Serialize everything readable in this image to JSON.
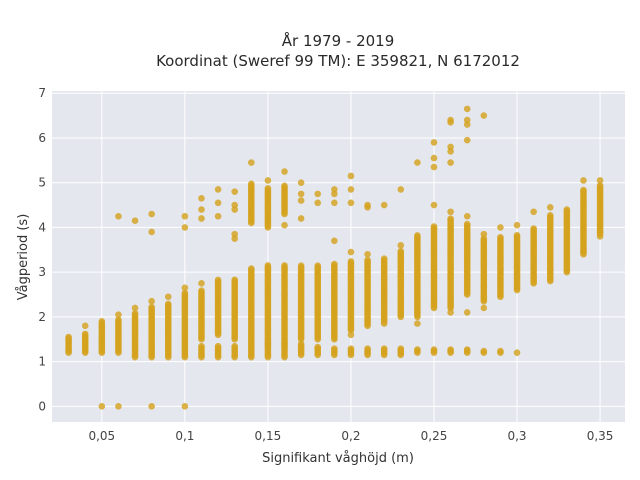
{
  "chart_data": {
    "type": "scatter",
    "title_line1": "År 1979 - 2019",
    "title_line2": "Koordinat (Sweref 99 TM): E 359821, N 6172012",
    "xlabel": "Signifikant våghöjd (m)",
    "ylabel": "Vågperiod (s)",
    "xlim": [
      0.02,
      0.365
    ],
    "ylim": [
      -0.35,
      7.05
    ],
    "x_ticks": [
      0.05,
      0.1,
      0.15,
      0.2,
      0.25,
      0.3,
      0.35
    ],
    "x_tick_labels": [
      "0,05",
      "0,1",
      "0,15",
      "0,2",
      "0,25",
      "0,3",
      "0,35"
    ],
    "y_ticks": [
      0,
      1,
      2,
      3,
      4,
      5,
      6,
      7
    ],
    "y_tick_labels": [
      "0",
      "1",
      "2",
      "3",
      "4",
      "5",
      "6",
      "7"
    ],
    "grid": true,
    "marker_color": "#d4a21f",
    "plot_bg": "#e5e7ef",
    "grid_color": "#ffffff",
    "columns": [
      {
        "x": 0.03,
        "main": [
          1.2,
          1.55
        ],
        "extra": []
      },
      {
        "x": 0.04,
        "main": [
          1.2,
          1.65
        ],
        "extra": [
          1.8
        ]
      },
      {
        "x": 0.05,
        "main": [
          1.2,
          1.9
        ],
        "extra": [
          0
        ]
      },
      {
        "x": 0.06,
        "main": [
          1.2,
          1.95
        ],
        "extra": [
          0,
          2.05,
          4.25
        ]
      },
      {
        "x": 0.07,
        "main": [
          1.1,
          2.1
        ],
        "extra": [
          2.2,
          4.15
        ]
      },
      {
        "x": 0.08,
        "main": [
          1.1,
          2.25
        ],
        "extra": [
          0,
          2.35,
          3.9,
          4.3
        ]
      },
      {
        "x": 0.09,
        "main": [
          1.1,
          2.3
        ],
        "extra": [
          2.45
        ]
      },
      {
        "x": 0.1,
        "main": [
          1.1,
          2.55
        ],
        "extra": [
          0,
          2.65,
          4.0,
          4.25
        ]
      },
      {
        "x": 0.11,
        "main": [
          1.5,
          2.6
        ],
        "cluster": [
          1.1,
          1.35
        ],
        "extra": [
          2.75,
          4.2,
          4.4,
          4.65
        ]
      },
      {
        "x": 0.12,
        "main": [
          1.6,
          2.85
        ],
        "cluster": [
          1.1,
          1.35
        ],
        "extra": [
          4.25,
          4.55,
          4.85
        ]
      },
      {
        "x": 0.13,
        "main": [
          1.5,
          2.85
        ],
        "cluster": [
          1.1,
          1.35
        ],
        "extra": [
          3.75,
          3.85,
          4.4,
          4.5,
          4.8
        ]
      },
      {
        "x": 0.14,
        "main": [
          1.4,
          3.1
        ],
        "cluster": [
          1.1,
          1.4
        ],
        "upper": [
          4.1,
          5.0
        ],
        "extra": [
          5.45
        ]
      },
      {
        "x": 0.15,
        "main": [
          1.4,
          3.15
        ],
        "cluster": [
          1.1,
          1.4
        ],
        "upper": [
          4.0,
          4.9
        ],
        "extra": [
          5.05
        ]
      },
      {
        "x": 0.16,
        "main": [
          1.4,
          3.15
        ],
        "cluster": [
          1.1,
          1.4
        ],
        "upper": [
          4.3,
          4.95
        ],
        "extra": [
          4.05,
          5.25
        ]
      },
      {
        "x": 0.17,
        "main": [
          1.5,
          3.15
        ],
        "cluster": [
          1.15,
          1.4
        ],
        "extra": [
          4.2,
          4.6,
          4.75,
          5.0
        ]
      },
      {
        "x": 0.18,
        "main": [
          1.5,
          3.15
        ],
        "cluster": [
          1.15,
          1.35
        ],
        "extra": [
          4.55,
          4.75
        ]
      },
      {
        "x": 0.19,
        "main": [
          1.5,
          3.2
        ],
        "cluster": [
          1.15,
          1.3
        ],
        "extra": [
          3.7,
          4.55,
          4.75,
          4.85
        ]
      },
      {
        "x": 0.2,
        "main": [
          1.7,
          3.25
        ],
        "cluster": [
          1.15,
          1.3
        ],
        "extra": [
          1.6,
          3.45,
          4.55,
          4.85,
          5.15
        ]
      },
      {
        "x": 0.21,
        "main": [
          1.8,
          3.3
        ],
        "cluster": [
          1.15,
          1.3
        ],
        "extra": [
          3.4,
          4.45,
          4.5
        ]
      },
      {
        "x": 0.22,
        "main": [
          1.9,
          3.3
        ],
        "cluster": [
          1.15,
          1.3
        ],
        "extra": [
          1.85,
          4.5
        ]
      },
      {
        "x": 0.23,
        "main": [
          2.0,
          3.5
        ],
        "cluster": [
          1.15,
          1.3
        ],
        "extra": [
          3.6,
          4.85
        ]
      },
      {
        "x": 0.24,
        "main": [
          2.0,
          3.85
        ],
        "cluster": [
          1.2,
          1.3
        ],
        "extra": [
          1.85,
          5.45
        ]
      },
      {
        "x": 0.25,
        "main": [
          2.2,
          4.05
        ],
        "cluster": [
          1.2,
          1.3
        ],
        "extra": [
          4.5,
          5.35,
          5.55,
          5.9
        ]
      },
      {
        "x": 0.26,
        "main": [
          2.2,
          4.2
        ],
        "cluster": [
          1.2,
          1.3
        ],
        "extra": [
          2.1,
          4.35,
          5.45,
          5.7,
          5.8,
          6.35,
          6.4
        ]
      },
      {
        "x": 0.27,
        "main": [
          2.5,
          4.1
        ],
        "cluster": [
          1.2,
          1.3
        ],
        "extra": [
          2.1,
          4.25,
          5.95,
          6.3,
          6.4,
          6.65
        ]
      },
      {
        "x": 0.28,
        "main": [
          2.35,
          3.75
        ],
        "cluster": [
          1.2,
          1.25
        ],
        "extra": [
          2.2,
          3.85,
          6.5
        ]
      },
      {
        "x": 0.29,
        "main": [
          2.45,
          3.8
        ],
        "cluster": [
          1.2,
          1.25
        ],
        "extra": [
          4.0
        ]
      },
      {
        "x": 0.3,
        "main": [
          2.6,
          3.85
        ],
        "extra": [
          1.2,
          4.05
        ]
      },
      {
        "x": 0.31,
        "main": [
          2.75,
          4.0
        ],
        "extra": [
          4.35
        ]
      },
      {
        "x": 0.32,
        "main": [
          2.8,
          4.3
        ],
        "extra": [
          4.45
        ]
      },
      {
        "x": 0.33,
        "main": [
          3.0,
          4.4
        ],
        "extra": []
      },
      {
        "x": 0.34,
        "main": [
          3.4,
          4.85
        ],
        "extra": [
          5.05
        ]
      },
      {
        "x": 0.35,
        "main": [
          3.85,
          4.95
        ],
        "extra": [
          3.8,
          5.05
        ]
      }
    ]
  }
}
